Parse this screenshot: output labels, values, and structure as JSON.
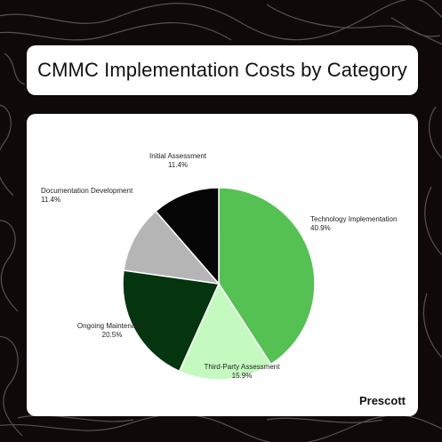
{
  "title": "CMMC Implementation Costs by Category",
  "brand": "Prescott",
  "colors": {
    "background": "#0f0a09",
    "contour": "#6f6966",
    "card": "#ffffff"
  },
  "chart_data": {
    "type": "pie",
    "title": "CMMC Implementation Costs by Category",
    "slices": [
      {
        "label": "Technology Implementation",
        "value": 40.9,
        "display": "40.9%",
        "color": "#55c153"
      },
      {
        "label": "Third-Party Assessment",
        "value": 15.9,
        "display": "15.9%",
        "color": "#c4fac0"
      },
      {
        "label": "Ongoing Maintenance",
        "value": 20.5,
        "display": "20.5%",
        "color": "#05350e"
      },
      {
        "label": "Documentation Development",
        "value": 11.4,
        "display": "11.4%",
        "color": "#b5b5b5"
      },
      {
        "label": "Initial Assessment",
        "value": 11.4,
        "display": "11.4%",
        "color": "#050505"
      }
    ],
    "start_angle": "top (12 o'clock)",
    "direction": "clockwise",
    "legend": "none (labels next to slices)"
  }
}
